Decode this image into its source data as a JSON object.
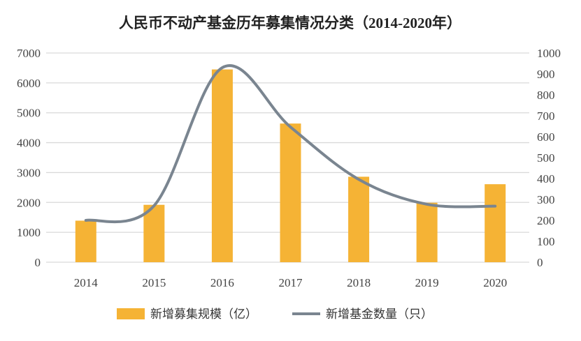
{
  "chart_data": {
    "type": "bar+line",
    "title": "人民币不动产基金历年募集情况分类（2014-2020年）",
    "categories": [
      "2014",
      "2015",
      "2016",
      "2017",
      "2018",
      "2019",
      "2020"
    ],
    "series": [
      {
        "name": "新增募集规模（亿）",
        "type": "bar",
        "axis": "left",
        "color": "#F5B335",
        "values": [
          1390,
          1920,
          6450,
          4640,
          2860,
          1990,
          2610
        ]
      },
      {
        "name": "新增基金数量（只）",
        "type": "line",
        "axis": "right",
        "color": "#7A8590",
        "smooth": true,
        "values": [
          200,
          270,
          930,
          646,
          396,
          277,
          268
        ]
      }
    ],
    "left_axis": {
      "ylim": [
        0,
        7000
      ],
      "ticks": [
        "0",
        "1000",
        "2000",
        "3000",
        "4000",
        "5000",
        "6000",
        "7000"
      ]
    },
    "right_axis": {
      "ylim": [
        0,
        1000
      ],
      "ticks": [
        "0",
        "100",
        "200",
        "300",
        "400",
        "500",
        "600",
        "700",
        "800",
        "900",
        "1000"
      ]
    },
    "grid": true,
    "legend": "bottom"
  }
}
